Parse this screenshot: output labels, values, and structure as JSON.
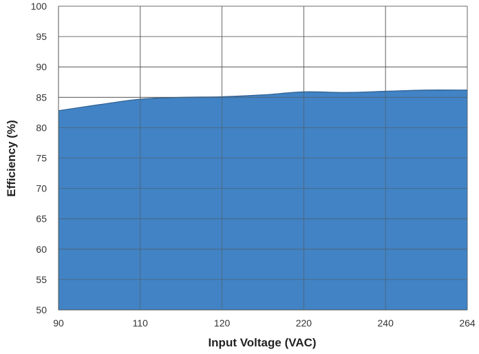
{
  "chart_data": {
    "type": "area",
    "title": "",
    "xlabel": "Input Voltage (VAC)",
    "ylabel": "Efficiency (%)",
    "x_ticks": [
      "90",
      "110",
      "120",
      "220",
      "240",
      "264"
    ],
    "y_ticks": [
      "100",
      "95",
      "90",
      "85",
      "80",
      "75",
      "70",
      "65",
      "60",
      "55",
      "50"
    ],
    "ylim": [
      50,
      100
    ],
    "grid": true,
    "series": [
      {
        "x": [
          "90",
          "100",
          "110",
          "115",
          "120",
          "125",
          "220",
          "230",
          "240",
          "250",
          "264"
        ],
        "values": [
          82.8,
          83.8,
          84.7,
          85.0,
          85.1,
          85.4,
          85.9,
          85.8,
          86.0,
          86.2,
          86.2
        ]
      }
    ],
    "colors": {
      "fill": "#4183C4",
      "stroke": "#2F5F8F",
      "grid": "#555555"
    }
  }
}
